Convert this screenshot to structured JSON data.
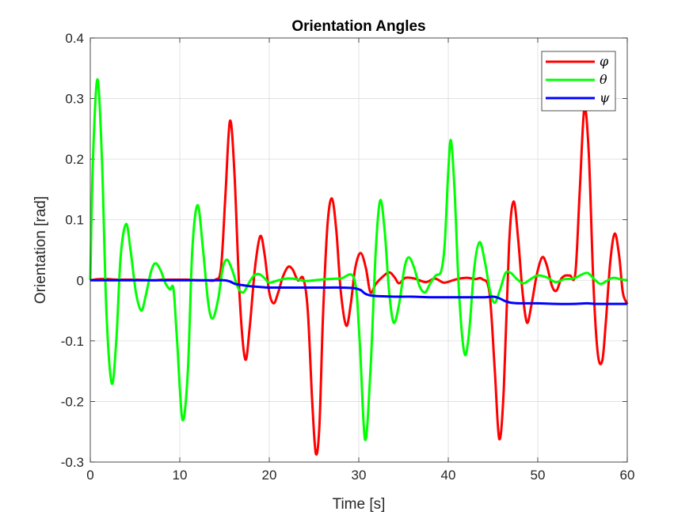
{
  "chart_data": {
    "type": "line",
    "title": "Orientation Angles",
    "xlabel": "Time [s]",
    "ylabel": "Orientation [rad]",
    "xlim": [
      0,
      60
    ],
    "ylim": [
      -0.3,
      0.4
    ],
    "xticks": [
      0,
      10,
      20,
      30,
      40,
      50,
      60
    ],
    "yticks": [
      -0.3,
      -0.2,
      -0.1,
      0,
      0.1,
      0.2,
      0.3,
      0.4
    ],
    "grid": true,
    "legend_position": "top-right",
    "series": [
      {
        "name": "φ",
        "color": "#ff0000",
        "points": [
          [
            0,
            0
          ],
          [
            1,
            0.002
          ],
          [
            2,
            0.002
          ],
          [
            3,
            0.001
          ],
          [
            5,
            0.001
          ],
          [
            7,
            0
          ],
          [
            8,
            0.001
          ],
          [
            9,
            0.001
          ],
          [
            10,
            0.001
          ],
          [
            11,
            0.001
          ],
          [
            12,
            0
          ],
          [
            13,
            0
          ],
          [
            14,
            0.001
          ],
          [
            14.6,
            0.02
          ],
          [
            15.1,
            0.14
          ],
          [
            15.6,
            0.263
          ],
          [
            16.1,
            0.18
          ],
          [
            16.7,
            -0.03
          ],
          [
            17.3,
            -0.13
          ],
          [
            17.8,
            -0.08
          ],
          [
            18.4,
            0.02
          ],
          [
            19,
            0.073
          ],
          [
            19.5,
            0.04
          ],
          [
            20,
            -0.02
          ],
          [
            20.5,
            -0.038
          ],
          [
            21,
            -0.02
          ],
          [
            21.5,
            0.005
          ],
          [
            22.1,
            0.022
          ],
          [
            22.6,
            0.018
          ],
          [
            23.2,
            0
          ],
          [
            23.8,
            0.003
          ],
          [
            24.3,
            -0.05
          ],
          [
            24.8,
            -0.2
          ],
          [
            25.2,
            -0.286
          ],
          [
            25.6,
            -0.24
          ],
          [
            26,
            -0.06
          ],
          [
            26.5,
            0.09
          ],
          [
            27,
            0.135
          ],
          [
            27.5,
            0.08
          ],
          [
            28,
            -0.02
          ],
          [
            28.6,
            -0.075
          ],
          [
            29.1,
            -0.04
          ],
          [
            29.6,
            0.02
          ],
          [
            30.2,
            0.045
          ],
          [
            30.8,
            0.02
          ],
          [
            31.3,
            -0.02
          ],
          [
            31.9,
            -0.006
          ],
          [
            32.6,
            0.005
          ],
          [
            33.4,
            0.013
          ],
          [
            34,
            0.005
          ],
          [
            34.5,
            -0.005
          ],
          [
            35.2,
            0.004
          ],
          [
            36.2,
            0.003
          ],
          [
            37.5,
            -0.003
          ],
          [
            38.5,
            0.003
          ],
          [
            39.5,
            -0.004
          ],
          [
            40.5,
            0
          ],
          [
            41.3,
            0.003
          ],
          [
            42.2,
            0.004
          ],
          [
            43,
            0.002
          ],
          [
            43.8,
            0.002
          ],
          [
            44.6,
            -0.02
          ],
          [
            45.2,
            -0.15
          ],
          [
            45.7,
            -0.262
          ],
          [
            46.2,
            -0.18
          ],
          [
            46.8,
            0.06
          ],
          [
            47.3,
            0.13
          ],
          [
            47.8,
            0.07
          ],
          [
            48.3,
            -0.02
          ],
          [
            48.8,
            -0.07
          ],
          [
            49.3,
            -0.04
          ],
          [
            49.9,
            0.01
          ],
          [
            50.5,
            0.038
          ],
          [
            51,
            0.025
          ],
          [
            51.6,
            -0.01
          ],
          [
            52.1,
            -0.017
          ],
          [
            52.6,
            0.002
          ],
          [
            53.1,
            0.008
          ],
          [
            53.6,
            0.008
          ],
          [
            54.2,
            0.012
          ],
          [
            54.7,
            0.15
          ],
          [
            55.2,
            0.283
          ],
          [
            55.7,
            0.21
          ],
          [
            56.2,
            0
          ],
          [
            56.7,
            -0.12
          ],
          [
            57.2,
            -0.133
          ],
          [
            57.6,
            -0.07
          ],
          [
            58.1,
            0.03
          ],
          [
            58.6,
            0.077
          ],
          [
            59.1,
            0.04
          ],
          [
            59.5,
            -0.02
          ],
          [
            60,
            -0.039
          ]
        ]
      },
      {
        "name": "θ",
        "color": "#00ff00",
        "points": [
          [
            0,
            0
          ],
          [
            0.3,
            0.2
          ],
          [
            0.8,
            0.332
          ],
          [
            1.3,
            0.2
          ],
          [
            1.8,
            -0.05
          ],
          [
            2.4,
            -0.17
          ],
          [
            2.9,
            -0.1
          ],
          [
            3.4,
            0.04
          ],
          [
            4,
            0.093
          ],
          [
            4.5,
            0.05
          ],
          [
            5.1,
            -0.02
          ],
          [
            5.7,
            -0.05
          ],
          [
            6.2,
            -0.025
          ],
          [
            6.8,
            0.015
          ],
          [
            7.3,
            0.028
          ],
          [
            7.9,
            0.015
          ],
          [
            8.4,
            -0.005
          ],
          [
            8.9,
            -0.015
          ],
          [
            9.3,
            -0.015
          ],
          [
            9.7,
            -0.1
          ],
          [
            10.3,
            -0.23
          ],
          [
            10.9,
            -0.15
          ],
          [
            11.4,
            0.05
          ],
          [
            12,
            0.124
          ],
          [
            12.6,
            0.05
          ],
          [
            13.2,
            -0.04
          ],
          [
            13.7,
            -0.063
          ],
          [
            14.3,
            -0.03
          ],
          [
            14.8,
            0.02
          ],
          [
            15.3,
            0.034
          ],
          [
            15.9,
            0.015
          ],
          [
            16.5,
            -0.012
          ],
          [
            17.1,
            -0.02
          ],
          [
            17.7,
            -0.005
          ],
          [
            18.3,
            0.008
          ],
          [
            18.9,
            0.01
          ],
          [
            19.5,
            0.003
          ],
          [
            20,
            -0.004
          ],
          [
            21,
            0
          ],
          [
            22,
            0.003
          ],
          [
            23,
            0.002
          ],
          [
            24,
            -0.001
          ],
          [
            25,
            0
          ],
          [
            26.5,
            0.002
          ],
          [
            28,
            0.003
          ],
          [
            29.5,
            0.002
          ],
          [
            30.1,
            -0.1
          ],
          [
            30.7,
            -0.263
          ],
          [
            31.3,
            -0.15
          ],
          [
            31.9,
            0.05
          ],
          [
            32.4,
            0.132
          ],
          [
            32.9,
            0.08
          ],
          [
            33.4,
            -0.02
          ],
          [
            33.9,
            -0.07
          ],
          [
            34.5,
            -0.04
          ],
          [
            35.1,
            0.02
          ],
          [
            35.6,
            0.038
          ],
          [
            36.2,
            0.02
          ],
          [
            36.8,
            -0.01
          ],
          [
            37.4,
            -0.02
          ],
          [
            38,
            -0.005
          ],
          [
            38.6,
            0.008
          ],
          [
            39.2,
            0.015
          ],
          [
            39.6,
            0.06
          ],
          [
            40,
            0.18
          ],
          [
            40.3,
            0.231
          ],
          [
            40.7,
            0.15
          ],
          [
            41.2,
            -0.02
          ],
          [
            41.8,
            -0.12
          ],
          [
            42.3,
            -0.09
          ],
          [
            42.9,
            0.02
          ],
          [
            43.5,
            0.063
          ],
          [
            44.1,
            0.03
          ],
          [
            44.7,
            -0.02
          ],
          [
            45.2,
            -0.037
          ],
          [
            45.8,
            -0.015
          ],
          [
            46.4,
            0.012
          ],
          [
            47,
            0.012
          ],
          [
            47.6,
            0.003
          ],
          [
            48.4,
            -0.005
          ],
          [
            49.2,
            0.002
          ],
          [
            50,
            0.008
          ],
          [
            51,
            0.005
          ],
          [
            52,
            -0.003
          ],
          [
            53,
            0.002
          ],
          [
            54,
            0.003
          ],
          [
            55,
            0.01
          ],
          [
            55.6,
            0.012
          ],
          [
            56.3,
            0.002
          ],
          [
            57,
            -0.006
          ],
          [
            57.7,
            -0.001
          ],
          [
            58.4,
            0.004
          ],
          [
            59.2,
            0.002
          ],
          [
            60,
            0
          ]
        ]
      },
      {
        "name": "ψ",
        "color": "#0000ff",
        "points": [
          [
            0,
            0
          ],
          [
            1,
            0
          ],
          [
            2,
            0
          ],
          [
            4,
            0
          ],
          [
            6,
            0
          ],
          [
            8,
            0
          ],
          [
            10,
            0
          ],
          [
            12,
            0
          ],
          [
            14,
            0
          ],
          [
            15,
            0
          ],
          [
            15.6,
            -0.002
          ],
          [
            16.2,
            -0.006
          ],
          [
            17,
            -0.008
          ],
          [
            18,
            -0.01
          ],
          [
            19,
            -0.011
          ],
          [
            20,
            -0.012
          ],
          [
            22,
            -0.012
          ],
          [
            24,
            -0.012
          ],
          [
            26,
            -0.012
          ],
          [
            28,
            -0.012
          ],
          [
            29.5,
            -0.013
          ],
          [
            30.2,
            -0.016
          ],
          [
            30.7,
            -0.022
          ],
          [
            31.3,
            -0.025
          ],
          [
            32,
            -0.026
          ],
          [
            34,
            -0.027
          ],
          [
            36,
            -0.027
          ],
          [
            38,
            -0.028
          ],
          [
            40,
            -0.028
          ],
          [
            42,
            -0.028
          ],
          [
            44,
            -0.028
          ],
          [
            45,
            -0.027
          ],
          [
            45.6,
            -0.029
          ],
          [
            46.3,
            -0.034
          ],
          [
            47,
            -0.037
          ],
          [
            48,
            -0.038
          ],
          [
            50,
            -0.038
          ],
          [
            52,
            -0.039
          ],
          [
            54,
            -0.039
          ],
          [
            55.5,
            -0.038
          ],
          [
            56.5,
            -0.039
          ],
          [
            58,
            -0.039
          ],
          [
            60,
            -0.039
          ]
        ]
      }
    ]
  }
}
